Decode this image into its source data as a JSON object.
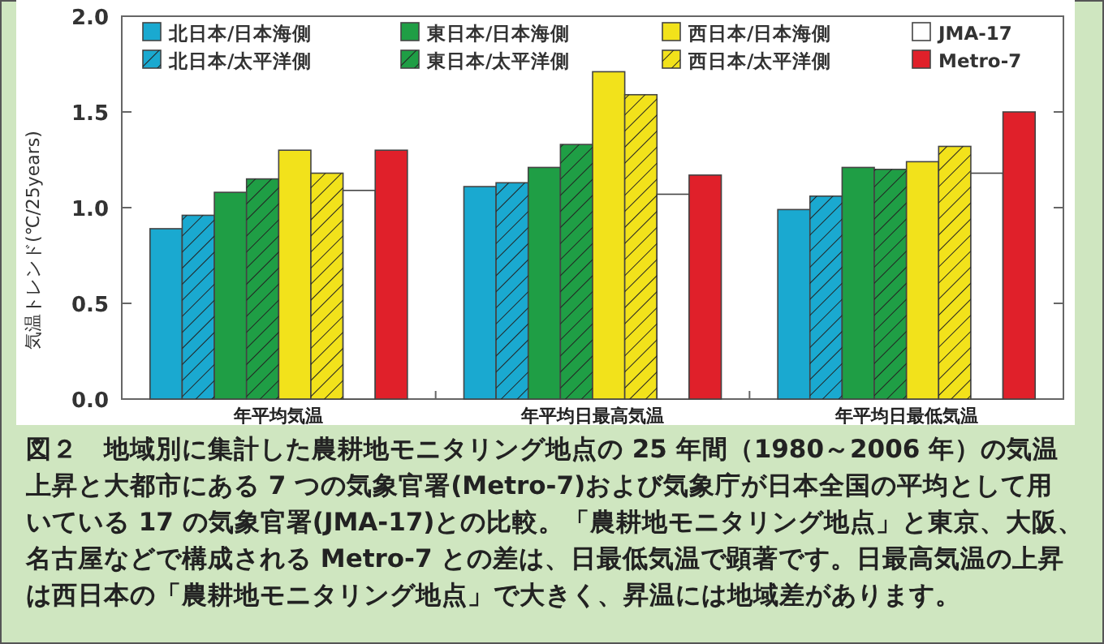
{
  "chart_data": {
    "type": "bar",
    "ylabel": "気温トレンド(℃/25years)",
    "categories": [
      "年平均気温",
      "年平均日最高気温",
      "年平均日最低気温"
    ],
    "series": [
      {
        "name": "北日本/日本海側",
        "color": "#1aa9d0",
        "values": [
          0.89,
          1.11,
          0.99
        ]
      },
      {
        "name": "北日本/太平洋側",
        "color": "#1aa9d0",
        "values": [
          0.96,
          1.13,
          1.06
        ]
      },
      {
        "name": "東日本/日本海側",
        "color": "#1f9e45",
        "values": [
          1.08,
          1.21,
          1.21
        ]
      },
      {
        "name": "東日本/太平洋側",
        "color": "#1f9e45",
        "values": [
          1.15,
          1.33,
          1.2
        ]
      },
      {
        "name": "西日本/日本海側",
        "color": "#f2e21b",
        "values": [
          1.3,
          1.71,
          1.24
        ]
      },
      {
        "name": "西日本/太平洋側",
        "color": "#f2e21b",
        "values": [
          1.18,
          1.59,
          1.32
        ]
      },
      {
        "name": "JMA-17",
        "color": "#ffffff",
        "values": [
          1.09,
          1.07,
          1.18
        ]
      },
      {
        "name": "Metro-7",
        "color": "#e0202a",
        "values": [
          1.3,
          1.17,
          1.5
        ]
      }
    ],
    "ylim": [
      0,
      2
    ],
    "yticks": [
      {
        "value": 0,
        "label": "0.0"
      },
      {
        "value": 0.5,
        "label": "0.5"
      },
      {
        "value": 1,
        "label": "1.0"
      },
      {
        "value": 1.5,
        "label": "1.5"
      },
      {
        "value": 2,
        "label": "2.0"
      }
    ],
    "legend": "top",
    "annotations": [
      "図２　地域別に集計した農耕地モニタリング地点の 25 年間（1980～2006 年）の気温上昇と大都市にある 7 つの気象官署(Metro-7)および気象庁が日本全国の平均として用いている 17 の気象官署(JMA-17)との比較。「農耕地モニタリング地点」と東京、大阪、名古屋などで構成される Metro-7 との差は、日最低気温で顕著です。日最高気温の上昇は西日本の「農耕地モニタリング地点」で大きく、昇温には地域差があります。"
    ]
  }
}
